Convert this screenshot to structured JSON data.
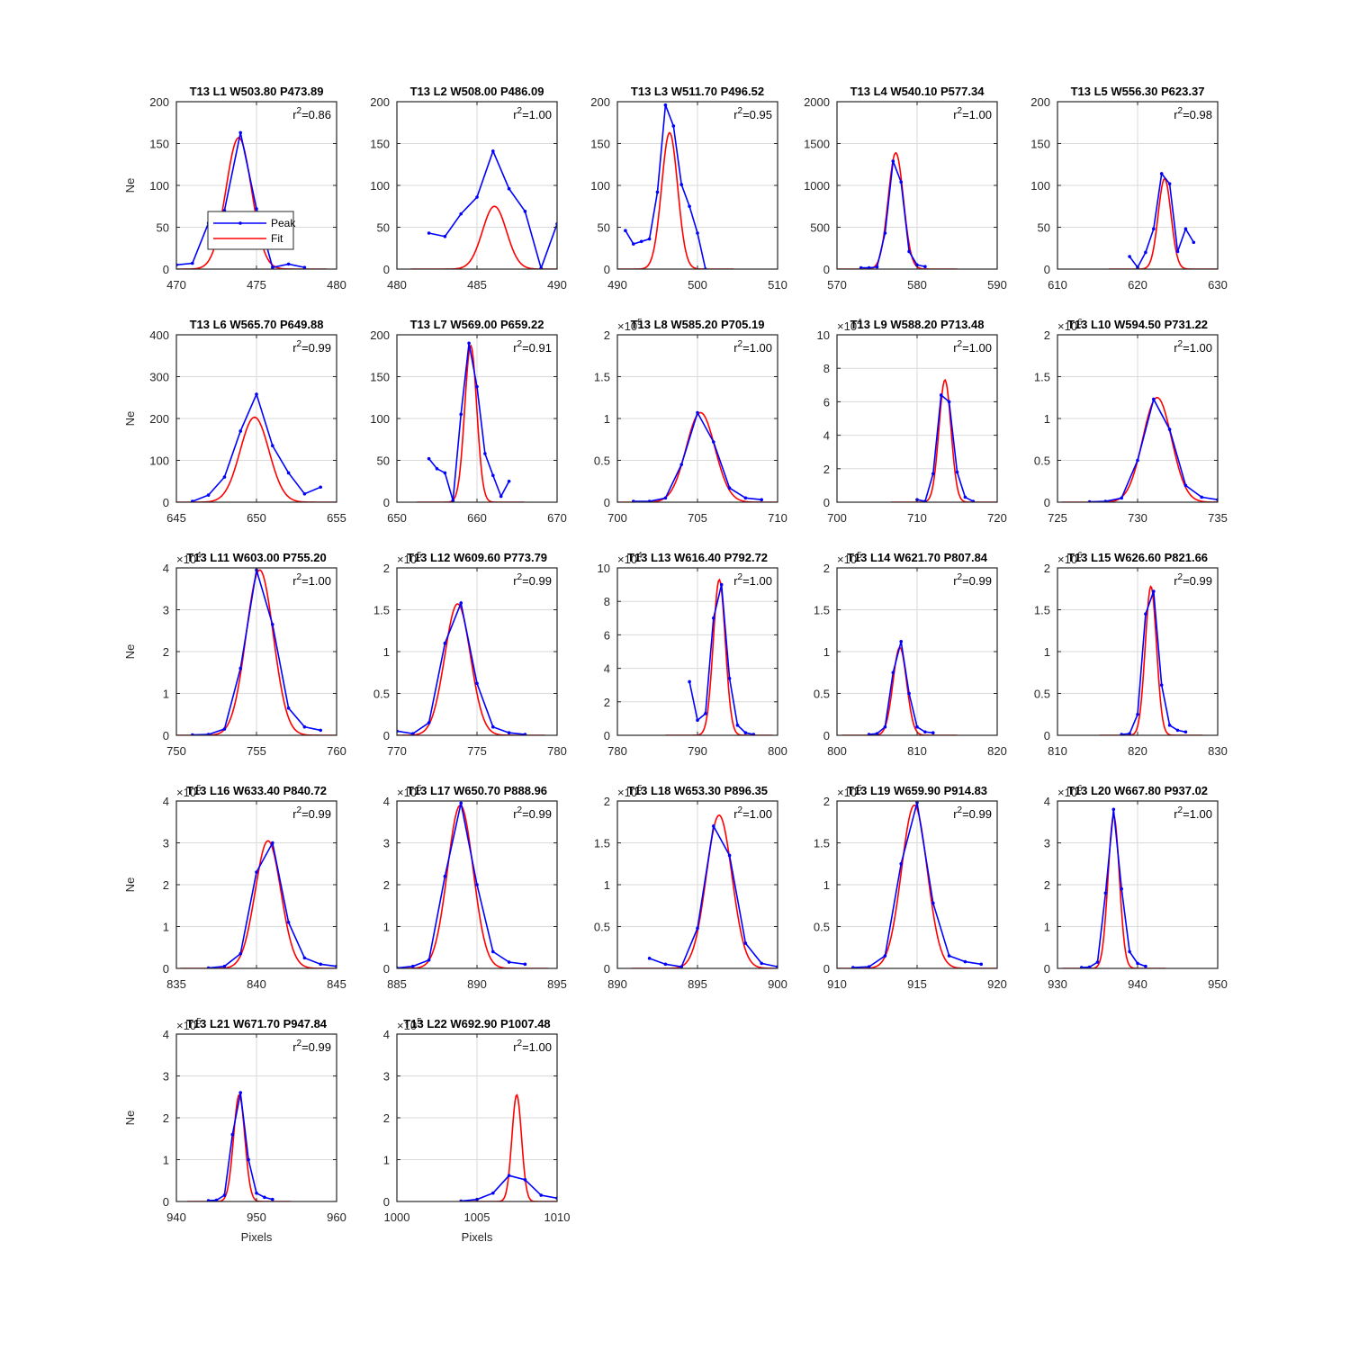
{
  "figure": {
    "xlabel": "Pixels",
    "ylabel": "Ne",
    "legend": {
      "entries": [
        "Peak",
        "Fit"
      ],
      "in_panel": 0,
      "placement": "center-left"
    },
    "colors": {
      "peak": "#0000ff",
      "fit": "#ff0000",
      "axis": "#262626",
      "grid": "#dadada"
    }
  },
  "chart_data": [
    {
      "type": "line",
      "title": "T13 L1 W503.80 P473.89",
      "r2": "r²=0.86",
      "xlim": [
        470,
        480
      ],
      "xticks": [
        470,
        475,
        480
      ],
      "ylim": [
        0,
        200
      ],
      "yticks": [
        0,
        50,
        100,
        150,
        200
      ],
      "exponent": "",
      "peak": {
        "x": [
          470,
          471,
          472,
          473,
          474,
          475,
          476,
          477,
          478
        ],
        "y": [
          5,
          7,
          55,
          70,
          163,
          72,
          2,
          6,
          2
        ]
      },
      "fit": {
        "A": 157,
        "mu": 473.89,
        "sigma": 0.8
      }
    },
    {
      "type": "line",
      "title": "T13 L2 W508.00 P486.09",
      "r2": "r²=1.00",
      "xlim": [
        480,
        490
      ],
      "xticks": [
        480,
        485,
        490
      ],
      "ylim": [
        0,
        200
      ],
      "yticks": [
        0,
        50,
        100,
        150,
        200
      ],
      "exponent": "",
      "peak": {
        "x": [
          482,
          483,
          484,
          485,
          486,
          487,
          488,
          489,
          490
        ],
        "y": [
          43,
          39,
          66,
          86,
          141,
          96,
          69,
          1,
          54
        ]
      },
      "fit": {
        "A": 75,
        "mu": 486.09,
        "sigma": 0.75
      }
    },
    {
      "type": "line",
      "title": "T13 L3 W511.70 P496.52",
      "r2": "r²=0.95",
      "xlim": [
        490,
        510
      ],
      "xticks": [
        490,
        500,
        510
      ],
      "ylim": [
        0,
        200
      ],
      "yticks": [
        0,
        50,
        100,
        150,
        200
      ],
      "exponent": "",
      "peak": {
        "x": [
          491,
          492,
          493,
          494,
          495,
          496,
          497,
          498,
          499,
          500,
          501
        ],
        "y": [
          46,
          30,
          33,
          36,
          92,
          196,
          171,
          101,
          75,
          43,
          0
        ]
      },
      "fit": {
        "A": 163,
        "mu": 496.52,
        "sigma": 1.0
      }
    },
    {
      "type": "line",
      "title": "T13 L4 W540.10 P577.34",
      "r2": "r²=1.00",
      "xlim": [
        570,
        590
      ],
      "xticks": [
        570,
        580,
        590
      ],
      "ylim": [
        0,
        2000
      ],
      "yticks": [
        0,
        500,
        1000,
        1500,
        2000
      ],
      "exponent": "",
      "peak": {
        "x": [
          573,
          574,
          575,
          576,
          577,
          578,
          579,
          580,
          581
        ],
        "y": [
          15,
          15,
          25,
          430,
          1290,
          1040,
          210,
          50,
          30
        ]
      },
      "fit": {
        "A": 1390,
        "mu": 577.34,
        "sigma": 0.95
      }
    },
    {
      "type": "line",
      "title": "T13 L5 W556.30 P623.37",
      "r2": "r²=0.98",
      "xlim": [
        610,
        630
      ],
      "xticks": [
        610,
        620,
        630
      ],
      "ylim": [
        0,
        200
      ],
      "yticks": [
        0,
        50,
        100,
        150,
        200
      ],
      "exponent": "",
      "peak": {
        "x": [
          619,
          620,
          621,
          622,
          623,
          624,
          625,
          626,
          627
        ],
        "y": [
          15,
          2,
          20,
          48,
          114,
          102,
          21,
          48,
          32
        ]
      },
      "fit": {
        "A": 108,
        "mu": 623.37,
        "sigma": 0.8
      }
    },
    {
      "type": "line",
      "title": "T13 L6 W565.70 P649.88",
      "r2": "r²=0.99",
      "xlim": [
        645,
        655
      ],
      "xticks": [
        645,
        650,
        655
      ],
      "ylim": [
        0,
        400
      ],
      "yticks": [
        0,
        100,
        200,
        300,
        400
      ],
      "exponent": "",
      "peak": {
        "x": [
          646,
          647,
          648,
          649,
          650,
          651,
          652,
          653,
          654
        ],
        "y": [
          2,
          17,
          60,
          170,
          258,
          135,
          70,
          20,
          36
        ]
      },
      "fit": {
        "A": 203,
        "mu": 649.88,
        "sigma": 0.9
      }
    },
    {
      "type": "line",
      "title": "T13 L7 W569.00 P659.22",
      "r2": "r²=0.91",
      "xlim": [
        650,
        670
      ],
      "xticks": [
        650,
        660,
        670
      ],
      "ylim": [
        0,
        200
      ],
      "yticks": [
        0,
        50,
        100,
        150,
        200
      ],
      "exponent": "",
      "peak": {
        "x": [
          654,
          655,
          656,
          657,
          658,
          659,
          660,
          661,
          662,
          663,
          664
        ],
        "y": [
          52,
          40,
          35,
          2,
          105,
          190,
          138,
          58,
          32,
          7,
          25
        ]
      },
      "fit": {
        "A": 187,
        "mu": 659.22,
        "sigma": 0.75
      }
    },
    {
      "type": "line",
      "title": "T13 L8 W585.20 P705.19",
      "r2": "r²=1.00",
      "xlim": [
        700,
        710
      ],
      "xticks": [
        700,
        705,
        710
      ],
      "ylim": [
        0,
        2
      ],
      "yticks": [
        0,
        0.5,
        1,
        1.5,
        2
      ],
      "exponent": "5",
      "peak": {
        "x": [
          701,
          702,
          703,
          704,
          705,
          706,
          707,
          708,
          709
        ],
        "y": [
          0.01,
          0.01,
          0.05,
          0.45,
          1.07,
          0.72,
          0.17,
          0.05,
          0.03
        ]
      },
      "fit": {
        "A": 1.07,
        "mu": 705.19,
        "sigma": 0.9
      }
    },
    {
      "type": "line",
      "title": "T13 L9 W588.20 P713.48",
      "r2": "r²=1.00",
      "xlim": [
        700,
        720
      ],
      "xticks": [
        700,
        710,
        720
      ],
      "ylim": [
        0,
        10
      ],
      "yticks": [
        0,
        2,
        4,
        6,
        8,
        10
      ],
      "exponent": "4",
      "peak": {
        "x": [
          710,
          711,
          712,
          713,
          714,
          715,
          716,
          717
        ],
        "y": [
          0.15,
          0.05,
          1.7,
          6.4,
          6.0,
          1.8,
          0.3,
          0.05
        ]
      },
      "fit": {
        "A": 7.3,
        "mu": 713.48,
        "sigma": 0.75
      }
    },
    {
      "type": "line",
      "title": "T13 L10 W594.50 P731.22",
      "r2": "r²=1.00",
      "xlim": [
        725,
        735
      ],
      "xticks": [
        725,
        730,
        735
      ],
      "ylim": [
        0,
        2
      ],
      "yticks": [
        0,
        0.5,
        1,
        1.5,
        2
      ],
      "exponent": "6",
      "peak": {
        "x": [
          727,
          728,
          729,
          730,
          731,
          732,
          733,
          734,
          735
        ],
        "y": [
          0.005,
          0.01,
          0.05,
          0.5,
          1.23,
          0.87,
          0.2,
          0.06,
          0.03
        ]
      },
      "fit": {
        "A": 1.25,
        "mu": 731.22,
        "sigma": 0.9
      }
    },
    {
      "type": "line",
      "title": "T13 L11 W603.00 P755.20",
      "r2": "r²=1.00",
      "xlim": [
        750,
        760
      ],
      "xticks": [
        750,
        755,
        760
      ],
      "ylim": [
        0,
        4
      ],
      "yticks": [
        0,
        1,
        2,
        3,
        4
      ],
      "exponent": "4",
      "peak": {
        "x": [
          751,
          752,
          753,
          754,
          755,
          756,
          757,
          758,
          759
        ],
        "y": [
          0.01,
          0.02,
          0.15,
          1.6,
          3.95,
          2.65,
          0.65,
          0.2,
          0.12
        ]
      },
      "fit": {
        "A": 3.95,
        "mu": 755.2,
        "sigma": 0.85
      }
    },
    {
      "type": "line",
      "title": "T13 L12 W609.60 P773.79",
      "r2": "r²=0.99",
      "xlim": [
        770,
        780
      ],
      "xticks": [
        770,
        775,
        780
      ],
      "ylim": [
        0,
        2
      ],
      "yticks": [
        0,
        0.5,
        1,
        1.5,
        2
      ],
      "exponent": "5",
      "peak": {
        "x": [
          770,
          771,
          772,
          773,
          774,
          775,
          776,
          777,
          778
        ],
        "y": [
          0.05,
          0.02,
          0.15,
          1.1,
          1.58,
          0.62,
          0.1,
          0.03,
          0.01
        ]
      },
      "fit": {
        "A": 1.57,
        "mu": 773.79,
        "sigma": 0.8
      }
    },
    {
      "type": "line",
      "title": "T13 L13 W616.40 P792.72",
      "r2": "r²=1.00",
      "xlim": [
        780,
        800
      ],
      "xticks": [
        780,
        790,
        800
      ],
      "ylim": [
        0,
        10
      ],
      "yticks": [
        0,
        2,
        4,
        6,
        8,
        10
      ],
      "exponent": "4",
      "peak": {
        "x": [
          789,
          790,
          791,
          792,
          793,
          794,
          795,
          796,
          797
        ],
        "y": [
          3.2,
          0.9,
          1.3,
          7.0,
          9.0,
          3.4,
          0.6,
          0.15,
          0.05
        ]
      },
      "fit": {
        "A": 9.3,
        "mu": 792.72,
        "sigma": 0.75
      }
    },
    {
      "type": "line",
      "title": "T13 L14 W621.70 P807.84",
      "r2": "r²=0.99",
      "xlim": [
        800,
        820
      ],
      "xticks": [
        800,
        810,
        820
      ],
      "ylim": [
        0,
        2
      ],
      "yticks": [
        0,
        0.5,
        1,
        1.5,
        2
      ],
      "exponent": "5",
      "peak": {
        "x": [
          804,
          805,
          806,
          807,
          808,
          809,
          810,
          811,
          812
        ],
        "y": [
          0.01,
          0.02,
          0.1,
          0.75,
          1.12,
          0.5,
          0.1,
          0.04,
          0.03
        ]
      },
      "fit": {
        "A": 1.05,
        "mu": 807.84,
        "sigma": 0.85
      }
    },
    {
      "type": "line",
      "title": "T13 L15 W626.60 P821.66",
      "r2": "r²=0.99",
      "xlim": [
        810,
        830
      ],
      "xticks": [
        810,
        820,
        830
      ],
      "ylim": [
        0,
        2
      ],
      "yticks": [
        0,
        0.5,
        1,
        1.5,
        2
      ],
      "exponent": "6",
      "peak": {
        "x": [
          818,
          819,
          820,
          821,
          822,
          823,
          824,
          825,
          826
        ],
        "y": [
          0.01,
          0.02,
          0.25,
          1.45,
          1.72,
          0.6,
          0.12,
          0.06,
          0.04
        ]
      },
      "fit": {
        "A": 1.78,
        "mu": 821.66,
        "sigma": 0.7
      }
    },
    {
      "type": "line",
      "title": "T13 L16 W633.40 P840.72",
      "r2": "r²=0.99",
      "xlim": [
        835,
        845
      ],
      "xticks": [
        835,
        840,
        845
      ],
      "ylim": [
        0,
        4
      ],
      "yticks": [
        0,
        1,
        2,
        3,
        4
      ],
      "exponent": "5",
      "peak": {
        "x": [
          837,
          838,
          839,
          840,
          841,
          842,
          843,
          844,
          845
        ],
        "y": [
          0.01,
          0.05,
          0.35,
          2.3,
          3.0,
          1.1,
          0.25,
          0.1,
          0.05
        ]
      },
      "fit": {
        "A": 3.05,
        "mu": 840.72,
        "sigma": 0.8
      }
    },
    {
      "type": "line",
      "title": "T13 L17 W650.70 P888.96",
      "r2": "r²=0.99",
      "xlim": [
        885,
        895
      ],
      "xticks": [
        885,
        890,
        895
      ],
      "ylim": [
        0,
        4
      ],
      "yticks": [
        0,
        1,
        2,
        3,
        4
      ],
      "exponent": "5",
      "peak": {
        "x": [
          885,
          886,
          887,
          888,
          889,
          890,
          891,
          892,
          893
        ],
        "y": [
          0.01,
          0.05,
          0.2,
          2.2,
          3.95,
          2.0,
          0.4,
          0.15,
          0.1
        ]
      },
      "fit": {
        "A": 3.9,
        "mu": 888.96,
        "sigma": 0.8
      }
    },
    {
      "type": "line",
      "title": "T13 L18 W653.30 P896.35",
      "r2": "r²=1.00",
      "xlim": [
        890,
        900
      ],
      "xticks": [
        890,
        895,
        900
      ],
      "ylim": [
        0,
        2
      ],
      "yticks": [
        0,
        0.5,
        1,
        1.5,
        2
      ],
      "exponent": "5",
      "peak": {
        "x": [
          892,
          893,
          894,
          895,
          896,
          897,
          898,
          899,
          900
        ],
        "y": [
          0.12,
          0.05,
          0.02,
          0.48,
          1.7,
          1.35,
          0.3,
          0.06,
          0.02
        ]
      },
      "fit": {
        "A": 1.83,
        "mu": 896.35,
        "sigma": 0.8
      }
    },
    {
      "type": "line",
      "title": "T13 L19 W659.90 P914.83",
      "r2": "r²=0.99",
      "xlim": [
        910,
        920
      ],
      "xticks": [
        910,
        915,
        920
      ],
      "ylim": [
        0,
        2
      ],
      "yticks": [
        0,
        0.5,
        1,
        1.5,
        2
      ],
      "exponent": "5",
      "peak": {
        "x": [
          911,
          912,
          913,
          914,
          915,
          916,
          917,
          918,
          919
        ],
        "y": [
          0.01,
          0.02,
          0.15,
          1.25,
          1.98,
          0.78,
          0.15,
          0.08,
          0.05
        ]
      },
      "fit": {
        "A": 1.95,
        "mu": 914.83,
        "sigma": 0.8
      }
    },
    {
      "type": "line",
      "title": "T13 L20 W667.80 P937.02",
      "r2": "r²=1.00",
      "xlim": [
        930,
        950
      ],
      "xticks": [
        930,
        940,
        950
      ],
      "ylim": [
        0,
        4
      ],
      "yticks": [
        0,
        1,
        2,
        3,
        4
      ],
      "exponent": "6",
      "peak": {
        "x": [
          933,
          934,
          935,
          936,
          937,
          938,
          939,
          940,
          941
        ],
        "y": [
          0.02,
          0.03,
          0.15,
          1.8,
          3.8,
          1.9,
          0.4,
          0.12,
          0.05
        ]
      },
      "fit": {
        "A": 3.65,
        "mu": 937.02,
        "sigma": 0.7
      }
    },
    {
      "type": "line",
      "title": "T13 L21 W671.70 P947.84",
      "r2": "r²=0.99",
      "xlim": [
        940,
        960
      ],
      "xticks": [
        940,
        950,
        960
      ],
      "ylim": [
        0,
        4
      ],
      "yticks": [
        0,
        1,
        2,
        3,
        4
      ],
      "exponent": "5",
      "peak": {
        "x": [
          944,
          945,
          946,
          947,
          948,
          949,
          950,
          951,
          952
        ],
        "y": [
          0.02,
          0.03,
          0.15,
          1.6,
          2.6,
          1.0,
          0.2,
          0.1,
          0.05
        ]
      },
      "fit": {
        "A": 2.55,
        "mu": 947.84,
        "sigma": 0.7
      }
    },
    {
      "type": "line",
      "title": "T13 L22 W692.90 P1007.48",
      "r2": "r²=1.00",
      "xlim": [
        1000,
        1010
      ],
      "xticks": [
        1000,
        1005,
        1010
      ],
      "ylim": [
        0,
        4
      ],
      "yticks": [
        0,
        1,
        2,
        3,
        4
      ],
      "exponent": "5",
      "peak": {
        "x": [
          1004,
          1005,
          1006,
          1007,
          1008,
          1009,
          1010
        ],
        "y": [
          0.01,
          0.05,
          0.2,
          0.62,
          0.52,
          0.15,
          0.08
        ]
      },
      "fit": {
        "A": 2.55,
        "mu": 1007.48,
        "sigma": 0.3
      }
    }
  ]
}
